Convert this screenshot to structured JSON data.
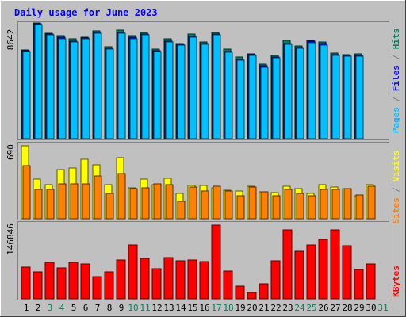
{
  "chart_data": {
    "type": "bar",
    "title": "Daily usage for June 2023",
    "days": [
      "1",
      "2",
      "3",
      "4",
      "5",
      "6",
      "7",
      "8",
      "9",
      "10",
      "11",
      "12",
      "13",
      "14",
      "15",
      "16",
      "17",
      "18",
      "19",
      "20",
      "21",
      "22",
      "23",
      "24",
      "25",
      "26",
      "27",
      "28",
      "29",
      "30",
      "31"
    ],
    "weekend_days": [
      "3",
      "4",
      "10",
      "11",
      "17",
      "18",
      "24",
      "25",
      "31"
    ],
    "panels": [
      {
        "id": "hits",
        "axis_max_label": "8642",
        "axis_max": 8642,
        "series": [
          {
            "name": "Hits",
            "color": "#00805c",
            "values": [
              6630,
              8642,
              7890,
              7700,
              7470,
              7600,
              8050,
              6860,
              8100,
              7710,
              7930,
              6660,
              7470,
              7110,
              7830,
              7220,
              7960,
              6700,
              6120,
              6320,
              5580,
              6220,
              7330,
              6920,
              7350,
              7240,
              6380,
              6270,
              6320
            ]
          },
          {
            "name": "Files",
            "color": "#0000ff",
            "values": [
              6570,
              8570,
              7800,
              7560,
              7270,
              7520,
              7960,
              6770,
              7950,
              7550,
              7820,
              6590,
              7280,
              7040,
              7630,
              7130,
              7820,
              6510,
              5920,
              6280,
              5420,
              6100,
              7120,
              6800,
              7270,
              7090,
              6290,
              6220,
              6240
            ]
          },
          {
            "name": "Pages",
            "color": "#00c0ff",
            "values": [
              6500,
              8500,
              7730,
              7480,
              7200,
              7450,
              7880,
              6690,
              7860,
              7470,
              7740,
              6510,
              7200,
              6960,
              7550,
              7050,
              7740,
              6430,
              5840,
              6200,
              5340,
              6020,
              7040,
              6720,
              7190,
              7010,
              6210,
              6140,
              6160
            ]
          }
        ]
      },
      {
        "id": "visits",
        "axis_max_label": "690",
        "axis_max": 690,
        "series": [
          {
            "name": "Visits",
            "color": "#ffff00",
            "values": [
              690,
              375,
              320,
              465,
              480,
              560,
              510,
              320,
              580,
              290,
              375,
              325,
              380,
              240,
              315,
              315,
              290,
              270,
              260,
              305,
              255,
              250,
              310,
              285,
              240,
              325,
              300,
              285,
              215,
              320
            ]
          },
          {
            "name": "Sites",
            "color": "#ff8000",
            "values": [
              500,
              275,
              280,
              330,
              330,
              330,
              405,
              240,
              430,
              285,
              295,
              330,
              320,
              165,
              300,
              260,
              305,
              265,
              215,
              300,
              255,
              215,
              280,
              240,
              215,
              275,
              280,
              285,
              225,
              305
            ]
          }
        ]
      },
      {
        "id": "kbytes",
        "axis_max_label": "146846",
        "axis_max": 146846,
        "series": [
          {
            "name": "KBytes",
            "color": "#ff0000",
            "values": [
              63000,
              54000,
              73000,
              62000,
              73000,
              70000,
              44000,
              54000,
              78000,
              108000,
              81000,
              60000,
              82000,
              76000,
              78000,
              75000,
              146846,
              55000,
              25000,
              13000,
              30000,
              76000,
              138000,
              95000,
              108000,
              119000,
              138000,
              106000,
              58000,
              70000
            ]
          }
        ]
      }
    ],
    "axis_labels": {
      "hits": [
        {
          "text": "Pages",
          "color": "#00c0ff"
        },
        {
          "text": " / ",
          "color": "#808080"
        },
        {
          "text": "Files",
          "color": "#0000ff"
        },
        {
          "text": " / ",
          "color": "#808080"
        },
        {
          "text": "Hits",
          "color": "#00805c"
        }
      ],
      "visits": [
        {
          "text": "Sites",
          "color": "#ff8000"
        },
        {
          "text": " / ",
          "color": "#808080"
        },
        {
          "text": "Visits",
          "color": "#ffff00"
        }
      ],
      "kbytes": [
        {
          "text": "KBytes",
          "color": "#ff0000"
        }
      ]
    },
    "colors": {
      "background": "#c0c0c0",
      "title": "#0000ff",
      "weekday_label": "#000000",
      "weekend_label": "#00805c"
    }
  }
}
